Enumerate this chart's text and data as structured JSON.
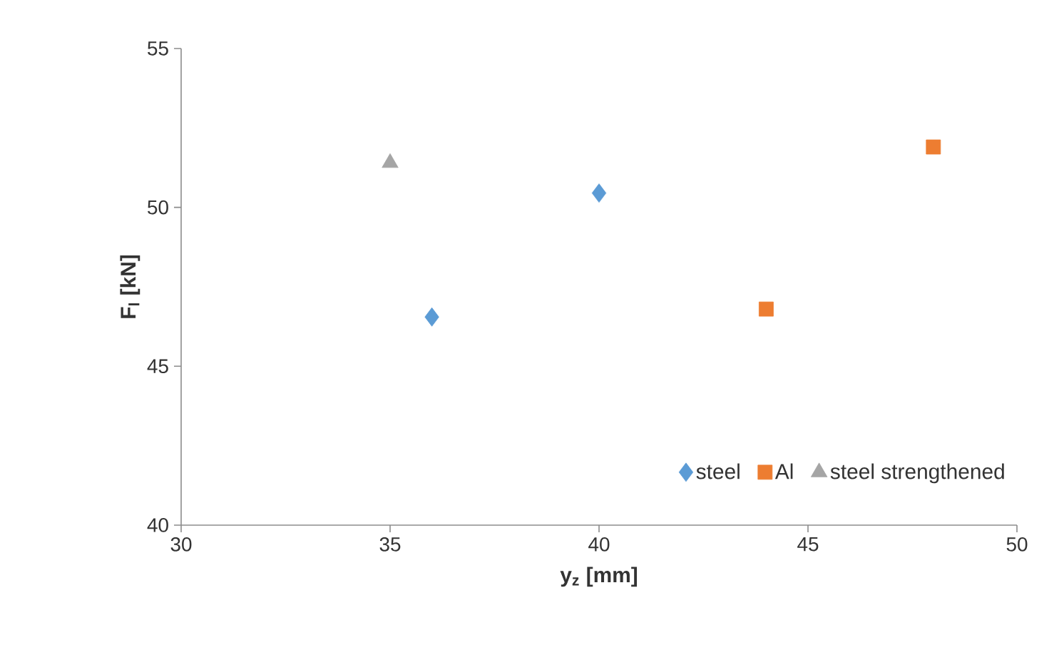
{
  "chart_data": {
    "type": "scatter",
    "xlabel": "y$_{z}$ [mm]",
    "ylabel": "F$_{l}$ [kN]",
    "xlim": [
      30,
      50
    ],
    "xticks": [
      30,
      35,
      40,
      45,
      50
    ],
    "ylim": [
      40,
      55
    ],
    "yticks": [
      40,
      45,
      50,
      55
    ],
    "grid": false,
    "legend": "bottom right",
    "series": [
      {
        "name": "steel",
        "color": "#5b9bd5",
        "marker": "diamond",
        "x": [
          36,
          40
        ],
        "values": [
          46.55,
          50.45
        ]
      },
      {
        "name": "Al",
        "color": "#ed7d31",
        "marker": "square",
        "x": [
          44,
          48
        ],
        "values": [
          46.8,
          51.9
        ]
      },
      {
        "name": "steel strengthened",
        "color": "#a5a5a5",
        "marker": "triangle",
        "x": [
          35
        ],
        "values": [
          51.4
        ]
      }
    ]
  }
}
